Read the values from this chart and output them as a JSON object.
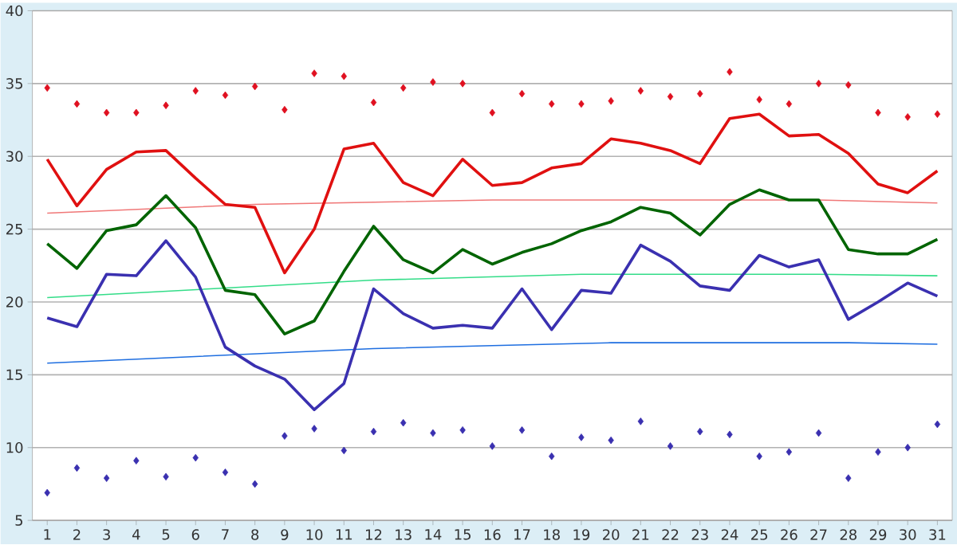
{
  "chart_data": {
    "type": "line",
    "x": [
      1,
      2,
      3,
      4,
      5,
      6,
      7,
      8,
      9,
      10,
      11,
      12,
      13,
      14,
      15,
      16,
      17,
      18,
      19,
      20,
      21,
      22,
      23,
      24,
      25,
      26,
      27,
      28,
      29,
      30,
      31
    ],
    "xlim": [
      0.5,
      31.5
    ],
    "xticks": [
      1,
      2,
      3,
      4,
      5,
      6,
      7,
      8,
      9,
      10,
      11,
      12,
      13,
      14,
      15,
      16,
      17,
      18,
      19,
      20,
      21,
      22,
      23,
      24,
      25,
      26,
      27,
      28,
      29,
      30,
      31
    ],
    "ylim": [
      5,
      40
    ],
    "yticks": [
      5,
      10,
      15,
      20,
      25,
      30,
      35,
      40
    ],
    "grid": "y",
    "marker": "none",
    "line_style": "solid",
    "series": [
      {
        "color": "#f07878",
        "x": [
          1,
          8,
          16,
          27,
          31
        ],
        "values": [
          26.1,
          26.7,
          27.0,
          27.0,
          26.8
        ]
      },
      {
        "color": "#33dd88",
        "x": [
          1,
          12,
          19,
          27,
          31
        ],
        "values": [
          20.3,
          21.5,
          21.9,
          21.9,
          21.8
        ]
      },
      {
        "color": "#1e6ee0",
        "x": [
          1,
          12,
          16,
          20,
          28,
          31
        ],
        "values": [
          15.8,
          16.8,
          17.0,
          17.2,
          17.2,
          17.1
        ]
      },
      {
        "color": "#e01010",
        "values": [
          29.8,
          26.6,
          29.1,
          30.3,
          30.4,
          28.5,
          26.7,
          26.5,
          22.0,
          25.0,
          30.5,
          30.9,
          28.2,
          27.3,
          29.8,
          28.0,
          28.2,
          29.2,
          29.5,
          31.2,
          30.9,
          30.4,
          29.5,
          32.6,
          32.9,
          31.4,
          31.5,
          30.2,
          28.1,
          27.5,
          29.0
        ]
      },
      {
        "color": "#006400",
        "values": [
          24.0,
          22.3,
          24.9,
          25.3,
          27.3,
          25.1,
          20.8,
          20.5,
          17.8,
          18.7,
          22.1,
          25.2,
          22.9,
          22.0,
          23.6,
          22.6,
          23.4,
          24.0,
          24.9,
          25.5,
          26.5,
          26.1,
          24.6,
          26.7,
          27.7,
          27.0,
          27.0,
          23.6,
          23.3,
          23.3,
          24.3
        ]
      },
      {
        "color": "#3a30b0",
        "values": [
          18.9,
          18.3,
          21.9,
          21.8,
          24.2,
          21.7,
          16.9,
          15.6,
          14.7,
          12.6,
          14.4,
          20.9,
          19.2,
          18.2,
          18.4,
          18.2,
          20.9,
          18.1,
          20.8,
          20.6,
          23.9,
          22.8,
          21.1,
          20.8,
          23.2,
          22.4,
          22.9,
          18.8,
          20.0,
          21.3,
          20.4
        ]
      },
      {
        "type": "scatter",
        "marker": "diamond",
        "color": "#e01020",
        "values": [
          34.7,
          33.6,
          33.0,
          33.0,
          33.5,
          34.5,
          34.2,
          34.8,
          33.2,
          35.7,
          35.5,
          33.7,
          34.7,
          35.1,
          35.0,
          33.0,
          34.3,
          33.6,
          33.6,
          33.8,
          34.5,
          34.1,
          34.3,
          35.8,
          33.9,
          33.6,
          35.0,
          34.9,
          33.0,
          32.7,
          32.9
        ]
      },
      {
        "type": "scatter",
        "marker": "diamond",
        "color": "#3a30b0",
        "values": [
          6.9,
          8.6,
          7.9,
          9.1,
          8.0,
          9.3,
          8.3,
          7.5,
          10.8,
          11.3,
          9.8,
          11.1,
          11.7,
          11.0,
          11.2,
          10.1,
          11.2,
          9.4,
          10.7,
          10.5,
          11.8,
          10.1,
          11.1,
          10.9,
          9.4,
          9.7,
          11.0,
          7.9,
          9.7,
          10.0,
          11.6
        ]
      }
    ]
  }
}
